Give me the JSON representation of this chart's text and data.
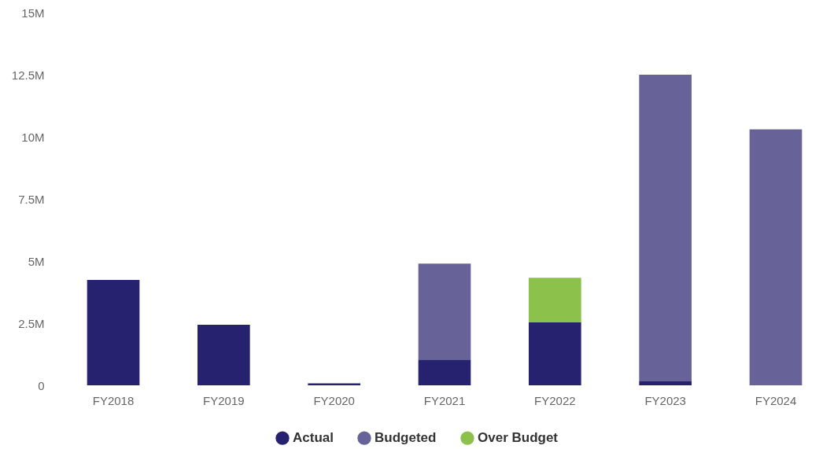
{
  "chart_data": {
    "type": "bar",
    "stacked": true,
    "categories": [
      "FY2018",
      "FY2019",
      "FY2020",
      "FY2021",
      "FY2022",
      "FY2023",
      "FY2024"
    ],
    "series": [
      {
        "name": "Actual",
        "color": "#272270",
        "values": [
          4240000,
          2440000,
          80000,
          1040000,
          2530000,
          160000,
          null
        ]
      },
      {
        "name": "Budgeted",
        "color": "#676398",
        "values": [
          null,
          null,
          null,
          3860000,
          null,
          12340000,
          10300000
        ]
      },
      {
        "name": "Over Budget",
        "color": "#8cc14c",
        "values": [
          null,
          null,
          null,
          null,
          1800000,
          null,
          null
        ]
      }
    ],
    "ylim": [
      0,
      15000000
    ],
    "yticks": [
      {
        "value": 0,
        "label": "0"
      },
      {
        "value": 2500000,
        "label": "2.5M"
      },
      {
        "value": 5000000,
        "label": "5M"
      },
      {
        "value": 7500000,
        "label": "7.5M"
      },
      {
        "value": 10000000,
        "label": "10M"
      },
      {
        "value": 12500000,
        "label": "12.5M"
      },
      {
        "value": 15000000,
        "label": "15M"
      }
    ],
    "grid": false,
    "legend": "bottom"
  }
}
